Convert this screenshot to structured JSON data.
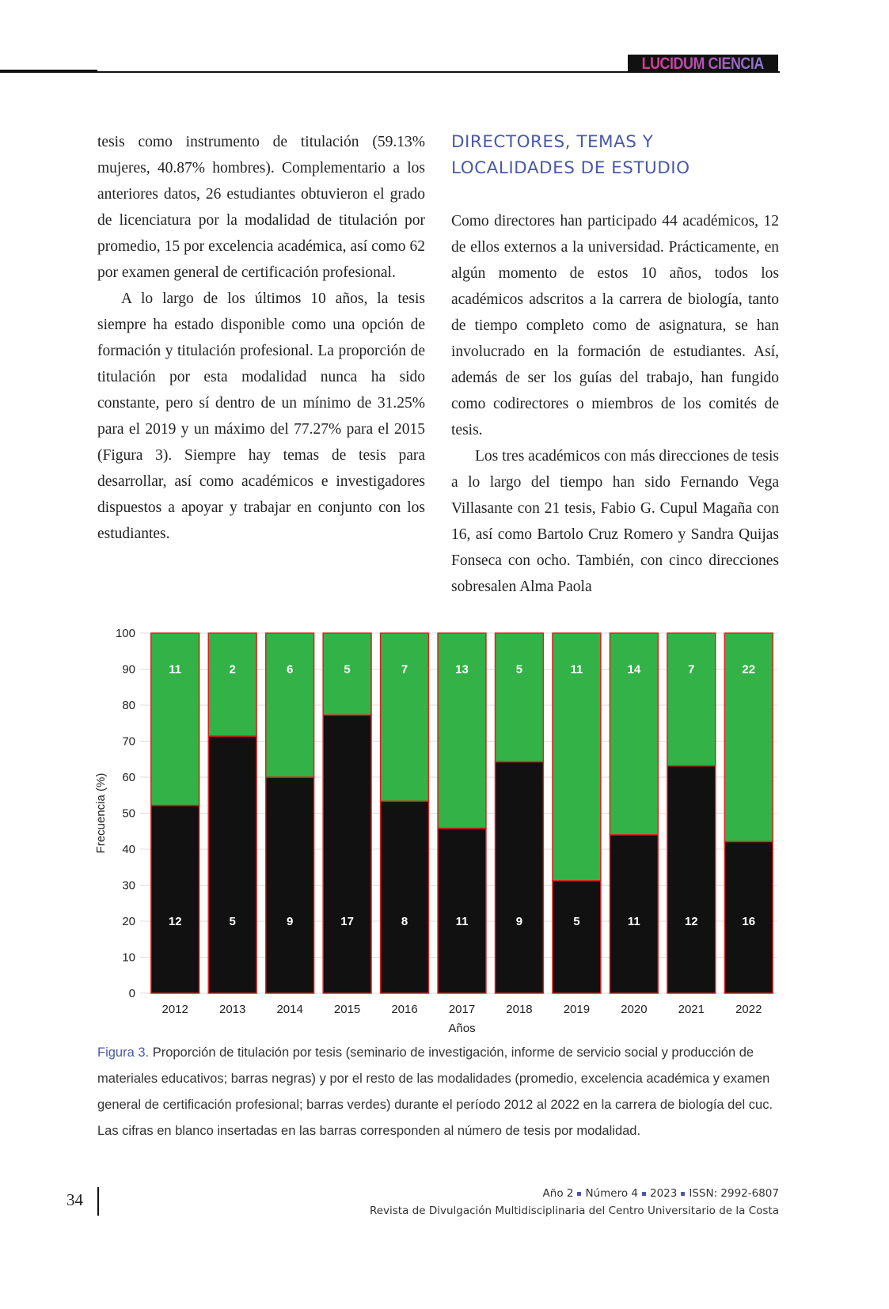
{
  "header": {
    "logo_text": "LUCIDUM CIENCIA"
  },
  "left_column": {
    "paragraphs": [
      "tesis como instrumento de titulación (59.13% mujeres, 40.87% hombres). Complementario a los anteriores datos, 26 estudiantes obtuvieron el grado de licenciatura por la modalidad de titulación por promedio, 15 por excelencia académica, así como 62 por examen general de certificación profesional.",
      "A lo largo de los últimos 10 años, la tesis siempre ha estado disponible como una opción de formación y titulación profesional. La proporción de titulación por esta modalidad nunca ha sido constante, pero sí dentro de un mínimo de 31.25% para el 2019 y un máximo del 77.27% para el 2015 (Figura 3). Siempre hay temas de tesis para desarrollar, así como académicos e investigadores dispuestos a apoyar y trabajar en conjunto con los estudiantes."
    ]
  },
  "right_column": {
    "heading": "DIRECTORES, TEMAS Y LOCALIDADES DE ESTUDIO",
    "paragraphs": [
      "Como directores han participado 44 académicos, 12 de ellos externos a la universidad. Prácticamente, en algún momento de estos 10 años, todos los académicos adscritos a la carrera de biología, tanto de tiempo completo como de asignatura, se han involucrado en la formación de estudiantes. Así, además de ser los guías del trabajo, han fungido como codirectores o miembros de los comités de tesis.",
      "Los tres académicos con más direcciones de tesis a lo largo del tiempo han sido Fernando Vega Villasante con 21 tesis, Fabio G. Cupul Magaña con 16, así como Bartolo Cruz Romero y Sandra Quijas Fonseca con ocho. También, con cinco direcciones sobresalen Alma Paola"
    ]
  },
  "chart_data": {
    "type": "bar",
    "stacked": true,
    "categories": [
      "2012",
      "2013",
      "2014",
      "2015",
      "2016",
      "2017",
      "2018",
      "2019",
      "2020",
      "2021",
      "2022"
    ],
    "series": [
      {
        "color": "#111111",
        "values": [
          52.17,
          71.43,
          60.0,
          77.27,
          53.33,
          45.83,
          64.29,
          31.25,
          44.0,
          63.16,
          42.11
        ],
        "labels": [
          12,
          5,
          9,
          17,
          8,
          11,
          9,
          5,
          11,
          12,
          16
        ]
      },
      {
        "color": "#33b247",
        "values": [
          47.83,
          28.57,
          40.0,
          22.73,
          46.67,
          54.17,
          35.71,
          68.75,
          56.0,
          36.84,
          57.89
        ],
        "labels": [
          11,
          2,
          6,
          5,
          7,
          13,
          5,
          11,
          14,
          7,
          22
        ]
      }
    ],
    "bar_outline_color": "#e02020",
    "xlabel": "Años",
    "ylabel": "Frecuencia (%)",
    "ylim": [
      0,
      100
    ],
    "yticks": [
      "0",
      "10",
      "20",
      "30",
      "40",
      "50",
      "60",
      "70",
      "80",
      "90",
      "100"
    ],
    "grid": true
  },
  "caption": {
    "label": "Figura 3.",
    "text": " Proporción de titulación por tesis (seminario de investigación, informe de servicio social y producción de materiales educativos; barras negras) y por el resto de las modalidades (promedio, excelencia académica y examen general de certificación profesional; barras verdes) durante el período 2012 al 2022 en la carrera de biología del cuc. Las cifras en blanco insertadas en las barras corresponden al número de tesis por modalidad."
  },
  "footer": {
    "page_number": "34",
    "issue": [
      "Año 2",
      "Número 4",
      "2023",
      "ISSN: 2992-6807"
    ],
    "journal": "Revista de Divulgación Multidisciplinaria del Centro Universitario de la Costa"
  }
}
